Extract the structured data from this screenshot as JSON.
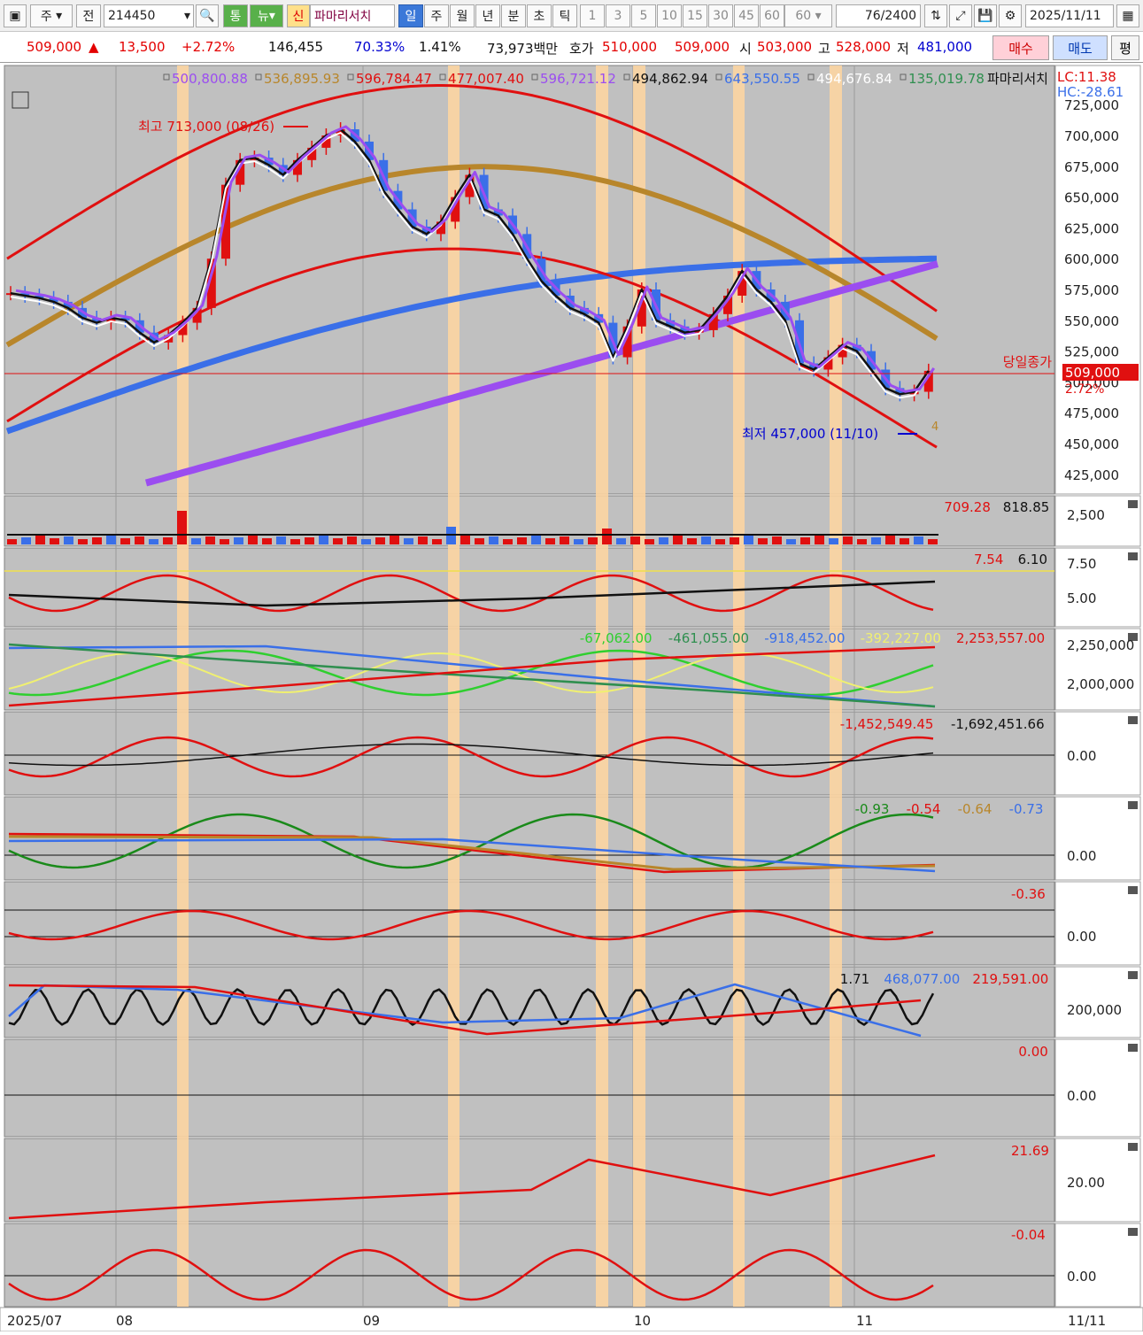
{
  "toolbar": {
    "market": "주",
    "prev_label": "전",
    "code": "214450",
    "btn_tong": "통",
    "btn_new": "뉴",
    "btn_sin": "신",
    "stock_name": "파마리서치",
    "periods": [
      "일",
      "주",
      "월",
      "년",
      "분",
      "초",
      "틱"
    ],
    "intervals": [
      "1",
      "3",
      "5",
      "10",
      "15",
      "30",
      "45",
      "60"
    ],
    "interval_select": "60",
    "count": "76",
    "count_total": "/2400",
    "date": "2025/11/11"
  },
  "quote": {
    "price": "509,000",
    "change_arrow": "▲",
    "change": "13,500",
    "change_pct": "+2.72%",
    "volume": "146,455",
    "vol_ratio": "70.33%",
    "turnover": "1.41%",
    "amount": "73,973백만",
    "hoga_label": "호가",
    "ask": "510,000",
    "bid": "509,000",
    "open_label": "시",
    "open": "503,000",
    "high_label": "고",
    "high": "528,000",
    "low_label": "저",
    "low": "481,000",
    "buy_label": "매수",
    "sell_label": "매도",
    "eval_label": "평"
  },
  "main_pane": {
    "legend": [
      {
        "text": "500,800.88",
        "color": "#9b4df0"
      },
      {
        "text": "536,895.93",
        "color": "#b8862b"
      },
      {
        "text": "596,784.47",
        "color": "#e01010"
      },
      {
        "text": "477,007.40",
        "color": "#e01010"
      },
      {
        "text": "596,721.12",
        "color": "#9b4df0"
      },
      {
        "text": "494,862.94",
        "color": "#111111"
      },
      {
        "text": "643,550.55",
        "color": "#3a6fe8"
      },
      {
        "text": "494,676.84",
        "color": "#ffffff"
      },
      {
        "text": "135,019.78",
        "color": "#2f8f4f"
      }
    ],
    "name": "파마리서치",
    "lc": "LC:11.38",
    "hc": "HC:-28.61",
    "y_ticks": [
      "725,000",
      "700,000",
      "675,000",
      "650,000",
      "625,000",
      "600,000",
      "575,000",
      "550,000",
      "525,000",
      "500,000",
      "475,000",
      "450,000",
      "425,000"
    ],
    "high_note": "최고 713,000 (08/26)",
    "low_note": "최저 457,000 (11/10)",
    "close_label": "당일종가",
    "close_tag": "509,000",
    "close_pct": "2.72%",
    "small_mark": "4"
  },
  "panes": {
    "volume": {
      "values": [
        "709.28",
        "818.85"
      ],
      "ticks": [
        "2,500"
      ]
    },
    "p2": {
      "values": [
        "7.54",
        "6.10"
      ],
      "ticks": [
        "7.50",
        "5.00"
      ]
    },
    "p3": {
      "values": [
        "-67,062.00",
        "-461,055.00",
        "-918,452.00",
        "-392,227.00",
        "2,253,557.00"
      ],
      "ticks": [
        "2,250,000",
        "2,000,000"
      ]
    },
    "p4": {
      "values": [
        "-1,452,549.45",
        "-1,692,451.66"
      ],
      "ticks": [
        "0.00"
      ]
    },
    "p5": {
      "values": [
        "-0.93",
        "-0.54",
        "-0.64",
        "-0.73"
      ],
      "ticks": [
        "0.00"
      ]
    },
    "p6": {
      "values": [
        "-0.36"
      ],
      "ticks": [
        "0.00"
      ]
    },
    "p7": {
      "values": [
        "1.71",
        "468,077.00",
        "219,591.00"
      ],
      "ticks": [
        "200,000"
      ]
    },
    "p8": {
      "values": [
        "0.00"
      ],
      "ticks": [
        "0.00"
      ]
    },
    "p9": {
      "values": [
        "21.69"
      ],
      "ticks": [
        "20.00"
      ]
    },
    "p10": {
      "values": [
        "-0.04"
      ],
      "ticks": [
        "0.00"
      ]
    }
  },
  "x_axis": {
    "labels": [
      "2025/07",
      "08",
      "09",
      "10",
      "11"
    ],
    "right_label": "11/11"
  },
  "colors": {
    "bg": "#c0c0c0",
    "up": "#e01010",
    "down": "#3a6fe8",
    "highlight": "#ffd6a0",
    "accent": "#3b78d8"
  }
}
